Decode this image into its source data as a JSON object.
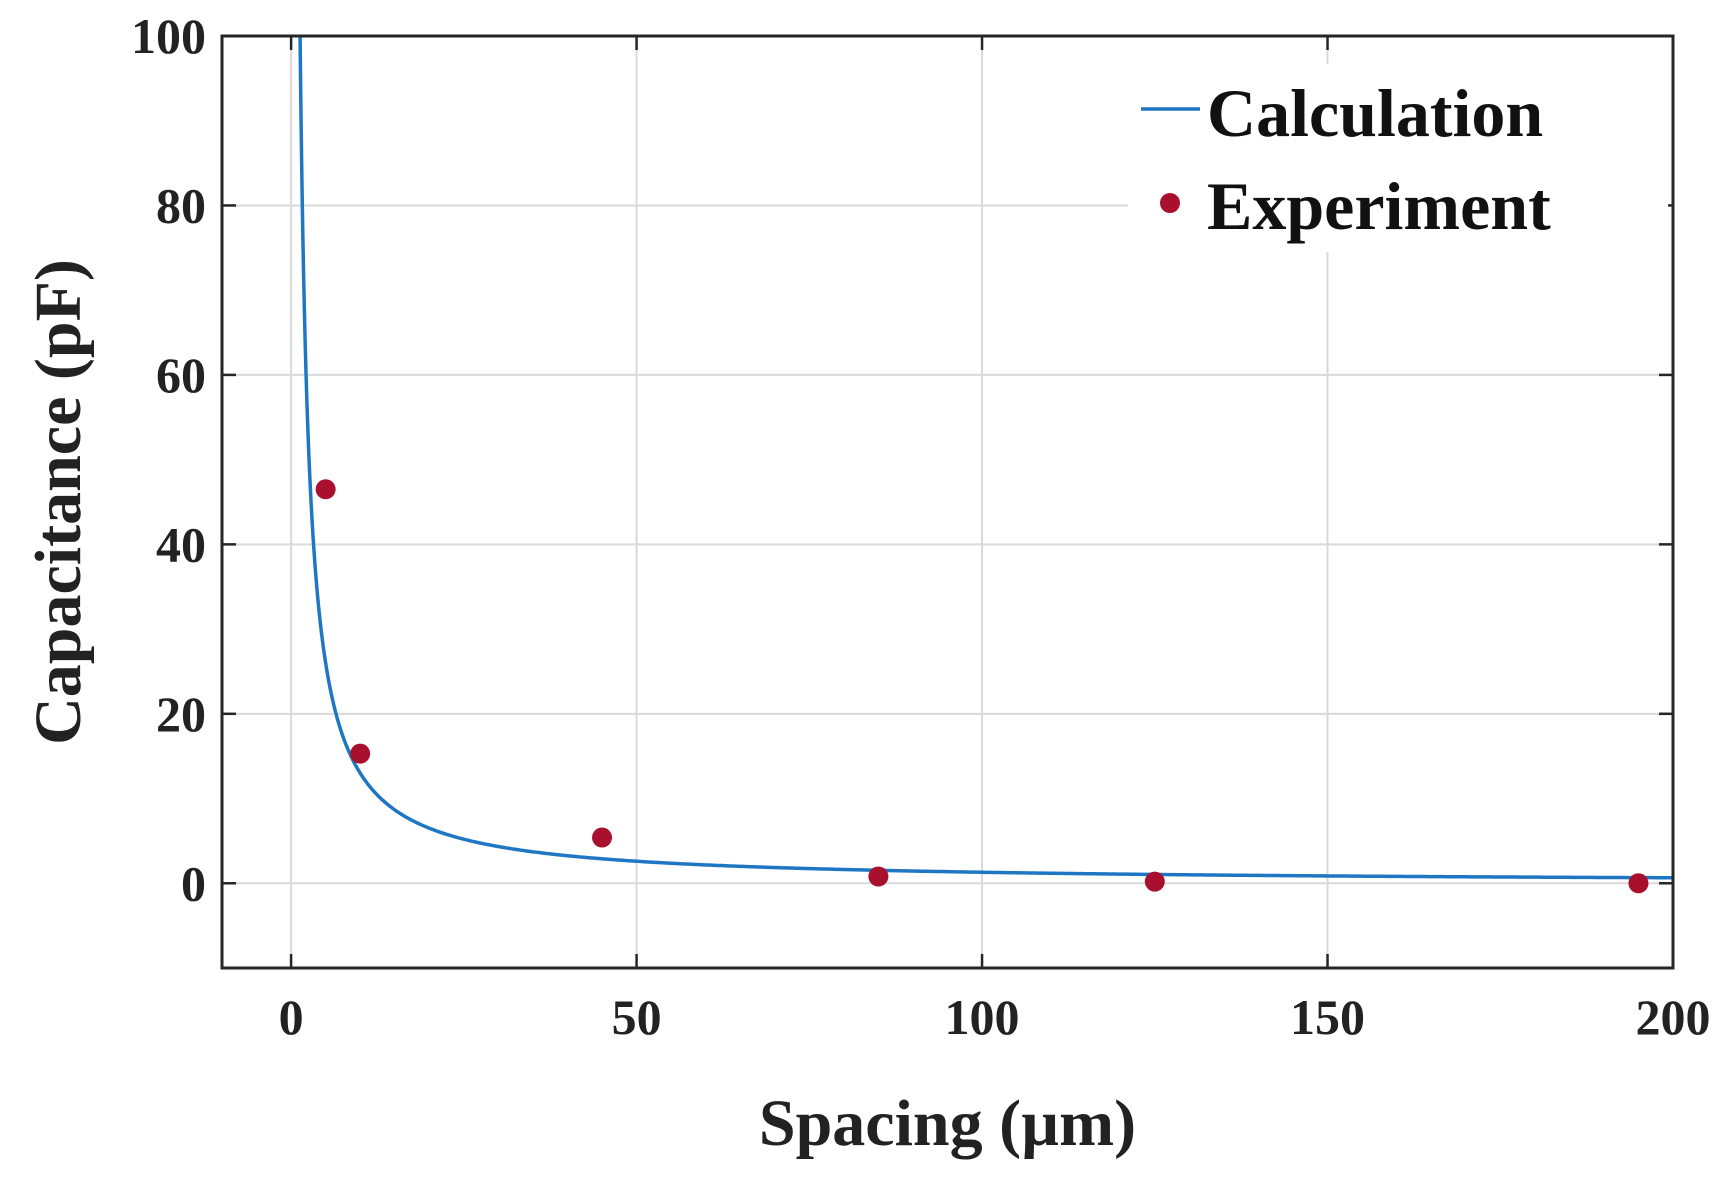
{
  "chart_data": {
    "type": "line",
    "xlabel": "Spacing (µm)",
    "ylabel": "Capacitance (pF)",
    "xlim": [
      -10,
      200
    ],
    "ylim": [
      -10,
      100
    ],
    "xticks": [
      0,
      50,
      100,
      150,
      200
    ],
    "yticks": [
      0,
      20,
      40,
      60,
      80,
      100
    ],
    "xtick_labels": [
      "0",
      "50",
      "100",
      "150",
      "200"
    ],
    "ytick_labels": [
      "0",
      "20",
      "40",
      "60",
      "80",
      "100"
    ],
    "grid": true,
    "legend_position": "top-right",
    "series": [
      {
        "name": "Calculation",
        "kind": "line",
        "color": "#1f77c4",
        "model": "C = k / d",
        "k": 130,
        "x_range": [
          1.3,
          200
        ]
      },
      {
        "name": "Experiment",
        "kind": "scatter",
        "color": "#a8102e",
        "x": [
          5,
          10,
          45,
          85,
          125,
          195
        ],
        "y": [
          46.5,
          15.3,
          5.4,
          0.8,
          0.2,
          0.0
        ]
      }
    ]
  }
}
